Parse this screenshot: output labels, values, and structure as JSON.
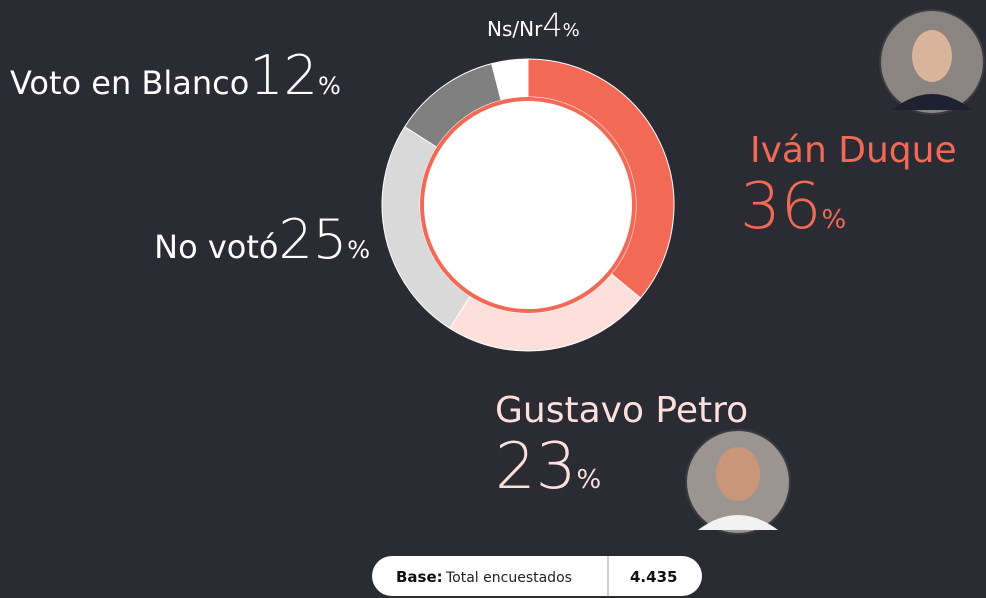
{
  "chart_data": {
    "type": "donut",
    "categories": [
      "Iván Duque",
      "Gustavo Petro",
      "No votó",
      "Voto en Blanco",
      "Ns/Nr"
    ],
    "values": [
      36,
      23,
      25,
      12,
      4
    ],
    "colors": [
      "#f26a55",
      "#fde0dc",
      "#d9d9d9",
      "#808080",
      "#ffffff"
    ],
    "unit": "%",
    "base": {
      "label": "Base:",
      "text": "Total encuestados",
      "value": "4.435"
    }
  }
}
